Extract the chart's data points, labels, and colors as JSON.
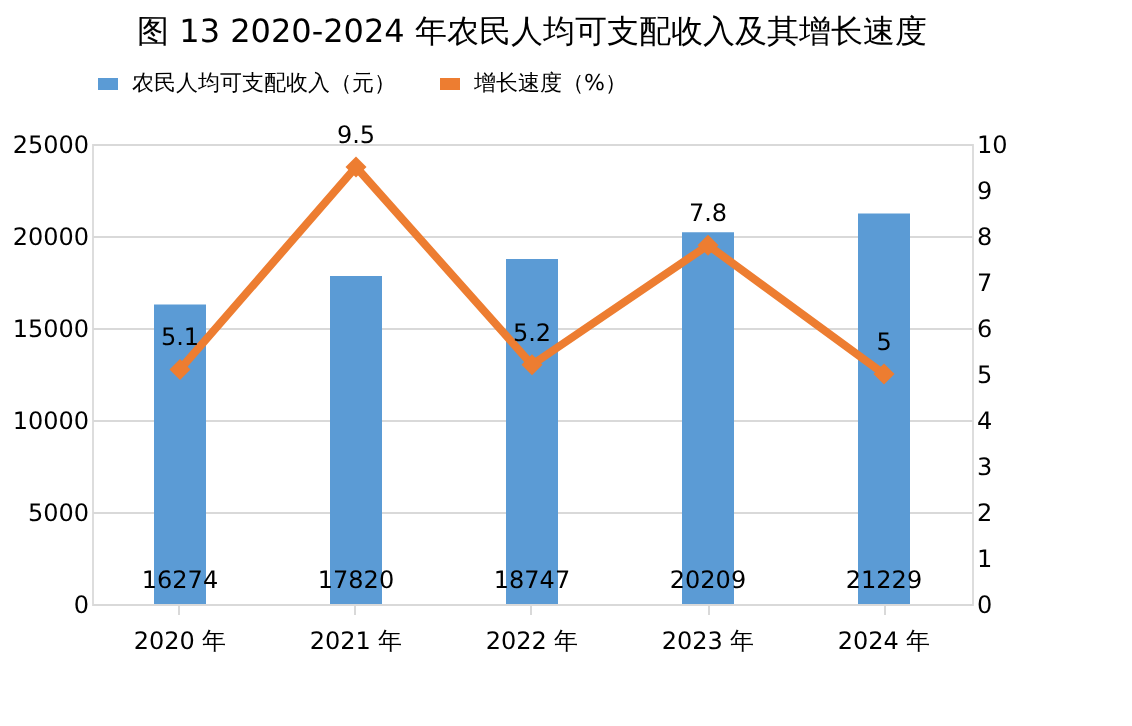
{
  "chart_data": {
    "type": "bar",
    "title": "图 13  2020-2024 年农民人均可支配收入及其增长速度",
    "categories": [
      "2020 年",
      "2021 年",
      "2022 年",
      "2023 年",
      "2024 年"
    ],
    "series": [
      {
        "name": "农民人均可支配收入（元）",
        "color": "#5b9bd5",
        "values": [
          16274,
          17820,
          18747,
          20209,
          21229
        ]
      },
      {
        "name": "增长速度（%）",
        "type": "line",
        "axis": "y2",
        "color": "#ed7d31",
        "marker": "diamond",
        "values": [
          5.1,
          9.5,
          5.2,
          7.8,
          5
        ]
      }
    ],
    "ylim": [
      0,
      25000
    ],
    "yticks": [
      0,
      5000,
      10000,
      15000,
      20000,
      25000
    ],
    "y2lim": [
      0,
      10
    ],
    "y2ticks": [
      0,
      1,
      2,
      3,
      4,
      5,
      6,
      7,
      8,
      9,
      10
    ],
    "grid": "y",
    "legend": "top",
    "data_labels": true
  }
}
